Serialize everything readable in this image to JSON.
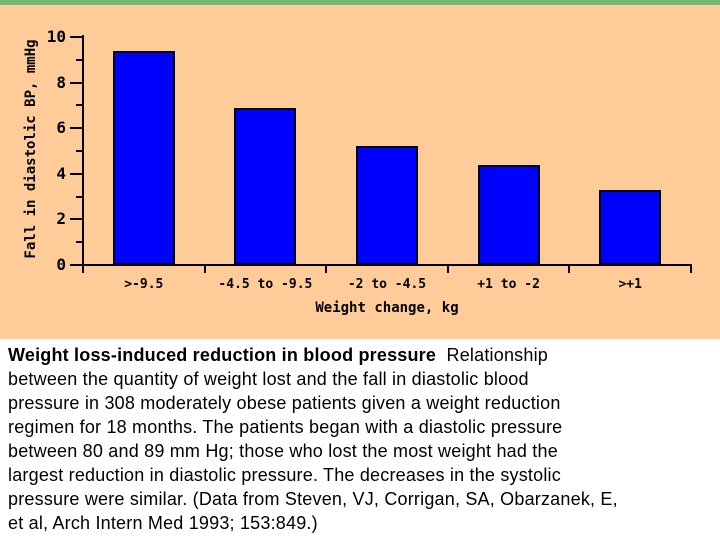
{
  "page": {
    "background_color": "#FFCC99",
    "top_strip_color": "#74B874",
    "caption_background": "#FFFFFF"
  },
  "chart_data": {
    "type": "bar",
    "categories": [
      ">-9.5",
      "-4.5 to -9.5",
      "-2 to -4.5",
      "+1 to -2",
      ">+1"
    ],
    "values": [
      9.4,
      6.9,
      5.2,
      4.4,
      3.3
    ],
    "xlabel": "Weight change, kg",
    "ylabel": "Fall in diastolic BP, mmHg",
    "ylim": [
      0,
      10
    ],
    "yticks": [
      0,
      2,
      4,
      6,
      8,
      10
    ],
    "yminorticks": [
      1,
      3,
      5,
      7,
      9
    ],
    "grid": false,
    "legend": "none",
    "bar_color": "#0000FF",
    "bar_border_color": "#000000",
    "axis_color": "#000000",
    "plot_background": "#FFCC99"
  },
  "caption": {
    "bold_lead": "Weight loss-induced reduction in blood pressure",
    "line1_rest": "  Relationship",
    "lines": [
      "between the quantity of weight lost and the fall in diastolic blood",
      "pressure in 308 moderately obese patients given a weight reduction",
      "regimen for 18 months. The patients began with a diastolic pressure",
      "between 80 and 89 mm Hg; those who lost the most weight had the",
      "largest reduction in diastolic pressure. The decreases in the systolic",
      "pressure were similar. (Data from Steven, VJ, Corrigan, SA, Obarzanek, E,",
      "et al, Arch Intern Med 1993; 153:849.)"
    ]
  }
}
